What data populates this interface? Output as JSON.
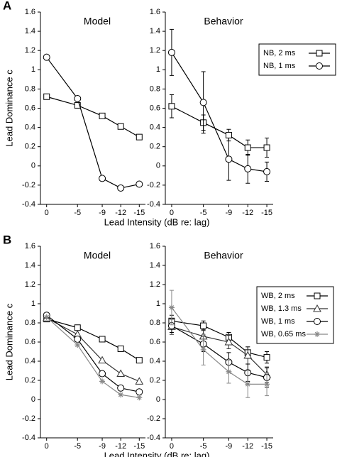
{
  "chart_data": [
    {
      "type": "line",
      "panel_label": "A",
      "title": "Model",
      "xlabel": "Lead Intensity (dB re: lag)",
      "ylabel": "Lead Dominance c",
      "x": [
        0,
        -5,
        -9,
        -12,
        -15
      ],
      "xlim": [
        1,
        -16
      ],
      "xticks": [
        0,
        -5,
        -9,
        -12,
        -15
      ],
      "ylim": [
        -0.4,
        1.6
      ],
      "yticks": [
        -0.4,
        -0.2,
        0,
        0.2,
        0.4,
        0.6,
        0.8,
        1,
        1.2,
        1.4,
        1.6
      ],
      "series": [
        {
          "name": "NB, 2 ms",
          "color": "#000000",
          "marker": "square",
          "values": [
            0.72,
            0.63,
            0.52,
            0.41,
            0.3
          ]
        },
        {
          "name": "NB, 1 ms",
          "color": "#000000",
          "marker": "circle",
          "values": [
            1.13,
            0.7,
            -0.13,
            -0.23,
            -0.19
          ]
        }
      ]
    },
    {
      "type": "line",
      "title": "Behavior",
      "legend": "outside right",
      "x": [
        0,
        -5,
        -9,
        -12,
        -15
      ],
      "xlim": [
        1,
        -16
      ],
      "xticks": [
        0,
        -5,
        -9,
        -12,
        -15
      ],
      "ylim": [
        -0.4,
        1.6
      ],
      "yticks": [
        -0.4,
        -0.2,
        0,
        0.2,
        0.4,
        0.6,
        0.8,
        1,
        1.2,
        1.4,
        1.6
      ],
      "series": [
        {
          "name": "NB, 2 ms",
          "color": "#000000",
          "marker": "square",
          "values": [
            0.62,
            0.45,
            0.32,
            0.19,
            0.19
          ],
          "errors": [
            0.12,
            0.08,
            0.06,
            0.08,
            0.1
          ]
        },
        {
          "name": "NB, 1 ms",
          "color": "#000000",
          "marker": "circle",
          "values": [
            1.18,
            0.66,
            0.07,
            -0.03,
            -0.06
          ],
          "errors": [
            0.24,
            0.32,
            0.22,
            0.15,
            0.1
          ]
        }
      ]
    },
    {
      "type": "line",
      "panel_label": "B",
      "title": "Model",
      "xlabel": "Lead Intensity (dB re: lag)",
      "ylabel": "Lead Dominance c",
      "x": [
        0,
        -5,
        -9,
        -12,
        -15
      ],
      "xlim": [
        1,
        -16
      ],
      "xticks": [
        0,
        -5,
        -9,
        -12,
        -15
      ],
      "ylim": [
        -0.4,
        1.6
      ],
      "yticks": [
        -0.4,
        -0.2,
        0,
        0.2,
        0.4,
        0.6,
        0.8,
        1,
        1.2,
        1.4,
        1.6
      ],
      "series": [
        {
          "name": "WB, 2 ms",
          "color": "#000000",
          "marker": "square",
          "values": [
            0.84,
            0.75,
            0.63,
            0.53,
            0.41
          ]
        },
        {
          "name": "WB, 1.3 ms",
          "color": "#333333",
          "marker": "triangle",
          "values": [
            0.85,
            0.68,
            0.41,
            0.27,
            0.19
          ]
        },
        {
          "name": "WB, 1 ms",
          "color": "#000000",
          "marker": "circle",
          "values": [
            0.88,
            0.63,
            0.27,
            0.12,
            0.08
          ]
        },
        {
          "name": "WB, 0.65 ms",
          "color": "#888888",
          "marker": "star",
          "values": [
            0.86,
            0.57,
            0.19,
            0.05,
            0.02
          ]
        }
      ]
    },
    {
      "type": "line",
      "title": "Behavior",
      "legend": "outside right",
      "x": [
        0,
        -5,
        -9,
        -12,
        -15
      ],
      "xlim": [
        1,
        -16
      ],
      "xticks": [
        0,
        -5,
        -9,
        -12,
        -15
      ],
      "ylim": [
        -0.4,
        1.6
      ],
      "yticks": [
        -0.4,
        -0.2,
        0,
        0.2,
        0.4,
        0.6,
        0.8,
        1,
        1.2,
        1.4,
        1.6
      ],
      "series": [
        {
          "name": "WB, 2 ms",
          "color": "#000000",
          "marker": "square",
          "values": [
            0.82,
            0.77,
            0.65,
            0.49,
            0.44
          ],
          "errors": [
            0.06,
            0.05,
            0.05,
            0.06,
            0.06
          ]
        },
        {
          "name": "WB, 1.3 ms",
          "color": "#333333",
          "marker": "triangle",
          "values": [
            0.76,
            0.66,
            0.6,
            0.46,
            0.26
          ],
          "errors": [
            0.08,
            0.07,
            0.07,
            0.09,
            0.08
          ]
        },
        {
          "name": "WB, 1 ms",
          "color": "#000000",
          "marker": "circle",
          "values": [
            0.77,
            0.58,
            0.39,
            0.28,
            0.23
          ],
          "errors": [
            0.07,
            0.08,
            0.1,
            0.09,
            0.1
          ]
        },
        {
          "name": "WB, 0.65 ms",
          "color": "#888888",
          "marker": "star",
          "values": [
            0.96,
            0.52,
            0.29,
            0.16,
            0.16
          ],
          "errors": [
            0.18,
            0.16,
            0.12,
            0.14,
            0.12
          ]
        }
      ]
    }
  ]
}
